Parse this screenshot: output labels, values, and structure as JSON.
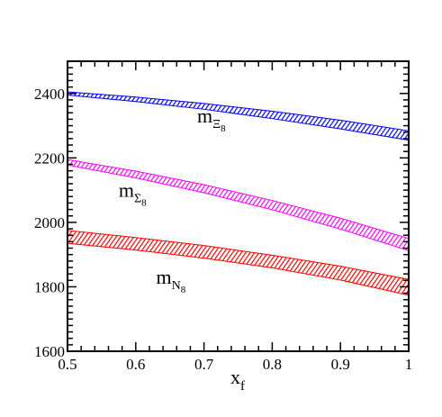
{
  "chart_data": {
    "type": "area",
    "title": "",
    "xlabel": {
      "main": "x",
      "sub": "f"
    },
    "ylabel": "",
    "xlim": [
      0.5,
      1.0
    ],
    "ylim": [
      1600,
      2500
    ],
    "x_ticks": [
      "0.5",
      "0.6",
      "0.7",
      "0.8",
      "0.9",
      "1"
    ],
    "y_ticks": [
      "1600",
      "1800",
      "2000",
      "2200",
      "2400"
    ],
    "grid": false,
    "legend": "none",
    "series": [
      {
        "color": "#0000ff",
        "x": [
          0.5,
          0.6,
          0.7,
          0.8,
          0.9,
          1.0
        ],
        "upper": [
          2405,
          2389,
          2369,
          2345,
          2317,
          2284
        ],
        "lower": [
          2395,
          2375,
          2351,
          2322,
          2290,
          2255
        ],
        "label": {
          "main": "m",
          "sub": "Ξ",
          "subsub": "8"
        }
      },
      {
        "color": "#ff00ff",
        "x": [
          0.5,
          0.6,
          0.7,
          0.8,
          0.9,
          1.0
        ],
        "upper": [
          2195,
          2159,
          2117,
          2068,
          2013,
          1950
        ],
        "lower": [
          2178,
          2138,
          2092,
          2039,
          1979,
          1912
        ],
        "label": {
          "main": "m",
          "sub": "Σ",
          "subsub": "8"
        }
      },
      {
        "color": "#ff0000",
        "x": [
          0.5,
          0.6,
          0.7,
          0.8,
          0.9,
          1.0
        ],
        "upper": [
          1975,
          1953,
          1928,
          1898,
          1864,
          1823
        ],
        "lower": [
          1935,
          1914,
          1889,
          1859,
          1821,
          1774
        ],
        "label": {
          "main": "m",
          "sub": "N",
          "subsub": "8"
        }
      }
    ]
  }
}
